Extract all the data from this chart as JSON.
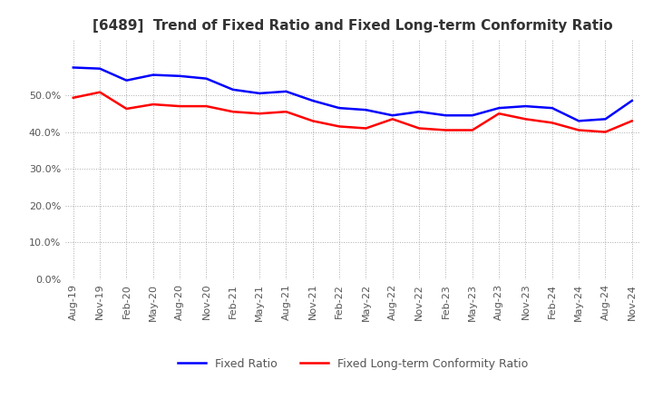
{
  "title": "[6489]  Trend of Fixed Ratio and Fixed Long-term Conformity Ratio",
  "x_labels": [
    "Aug-19",
    "Nov-19",
    "Feb-20",
    "May-20",
    "Aug-20",
    "Nov-20",
    "Feb-21",
    "May-21",
    "Aug-21",
    "Nov-21",
    "Feb-22",
    "May-22",
    "Aug-22",
    "Nov-22",
    "Feb-23",
    "May-23",
    "Aug-23",
    "Nov-23",
    "Feb-24",
    "May-24",
    "Aug-24",
    "Nov-24"
  ],
  "fixed_ratio": [
    57.5,
    57.2,
    54.0,
    55.5,
    55.2,
    54.5,
    51.5,
    50.5,
    51.0,
    48.5,
    46.5,
    46.0,
    44.5,
    45.5,
    44.5,
    44.5,
    46.5,
    47.0,
    46.5,
    43.0,
    43.5,
    48.5
  ],
  "fixed_lt_ratio": [
    49.3,
    50.8,
    46.3,
    47.5,
    47.0,
    47.0,
    45.5,
    45.0,
    45.5,
    43.0,
    41.5,
    41.0,
    43.5,
    41.0,
    40.5,
    40.5,
    45.0,
    43.5,
    42.5,
    40.5,
    40.0,
    43.0
  ],
  "fixed_ratio_color": "#0000ff",
  "fixed_lt_ratio_color": "#ff0000",
  "ylim": [
    0,
    65
  ],
  "yticks": [
    0.0,
    10.0,
    20.0,
    30.0,
    40.0,
    50.0
  ],
  "background_color": "#ffffff",
  "grid_color": "#aaaaaa",
  "line_width": 1.8,
  "title_fontsize": 11,
  "tick_fontsize": 8,
  "legend_fontsize": 9
}
